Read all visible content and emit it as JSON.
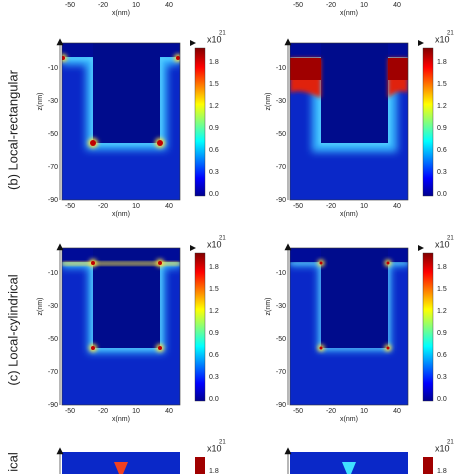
{
  "axes": {
    "xticks": [
      "-50",
      "-20",
      "10",
      "40"
    ],
    "yticks": [
      "-10",
      "-30",
      "-50",
      "-70",
      "-90"
    ],
    "xlabel": "x(nm)",
    "ylabel": "z(nm)",
    "colorbar_ticks": [
      "1.8",
      "1.5",
      "1.2",
      "0.9",
      "0.6",
      "0.3",
      "0.0"
    ],
    "colorbar_multiplier": "x10",
    "colorbar_exponent": "21"
  },
  "rows": [
    {
      "label": "(b) Local-rectangular"
    },
    {
      "label": "(c) Local-cylindrical"
    },
    {
      "label": "ical"
    }
  ]
}
